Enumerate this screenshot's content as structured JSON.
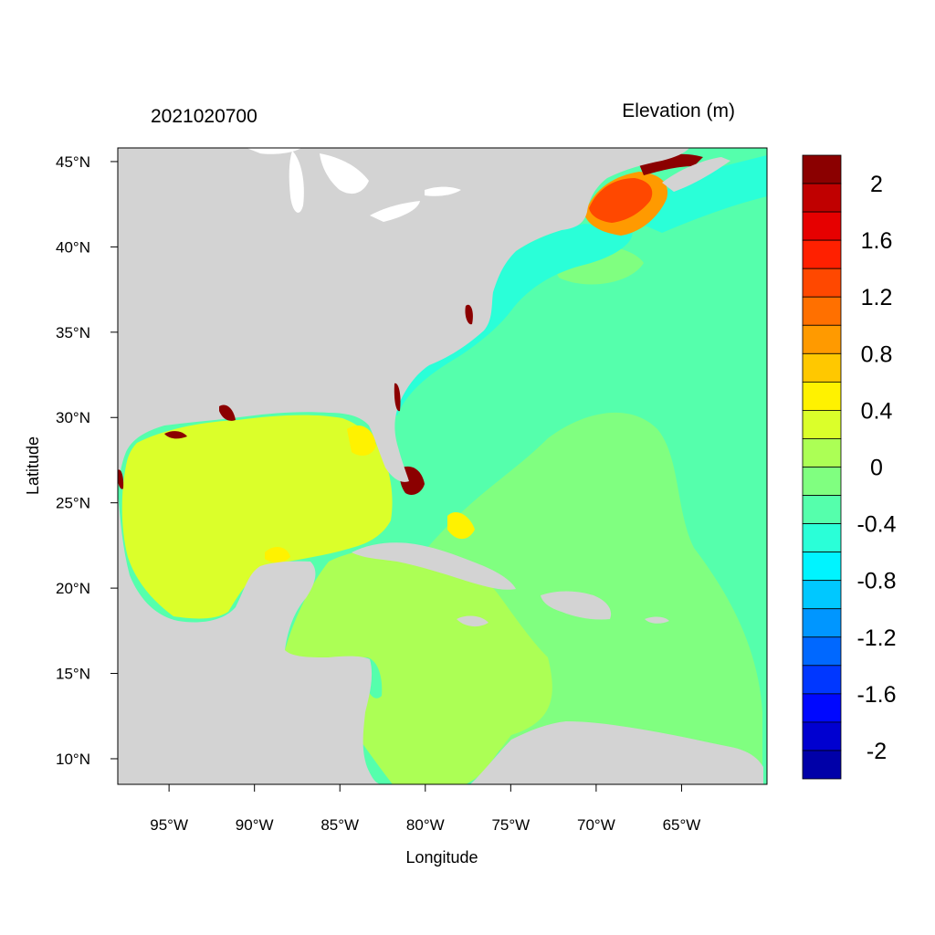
{
  "title_left": "2021020700",
  "title_right": "Elevation (m)",
  "x_axis": {
    "label": "Longitude",
    "ticks": [
      {
        "value": -95,
        "label": "95°W"
      },
      {
        "value": -90,
        "label": "90°W"
      },
      {
        "value": -85,
        "label": "85°W"
      },
      {
        "value": -80,
        "label": "80°W"
      },
      {
        "value": -75,
        "label": "75°W"
      },
      {
        "value": -70,
        "label": "70°W"
      },
      {
        "value": -65,
        "label": "65°W"
      }
    ],
    "range": [
      -98,
      -60
    ]
  },
  "y_axis": {
    "label": "Latitude",
    "ticks": [
      {
        "value": 45,
        "label": "45°N"
      },
      {
        "value": 40,
        "label": "40°N"
      },
      {
        "value": 35,
        "label": "35°N"
      },
      {
        "value": 30,
        "label": "30°N"
      },
      {
        "value": 25,
        "label": "25°N"
      },
      {
        "value": 20,
        "label": "20°N"
      },
      {
        "value": 15,
        "label": "15°N"
      },
      {
        "value": 10,
        "label": "10°N"
      }
    ],
    "range": [
      8.5,
      45.8
    ]
  },
  "colorbar": {
    "colors_top_to_bottom": [
      "#8b0000",
      "#c00000",
      "#e60000",
      "#ff2000",
      "#ff4800",
      "#ff7000",
      "#ff9a00",
      "#ffc800",
      "#fff200",
      "#dbff2a",
      "#acff55",
      "#80ff80",
      "#55ffac",
      "#2affd8",
      "#00f4ff",
      "#00c8ff",
      "#0096ff",
      "#0068ff",
      "#0037ff",
      "#0008ff",
      "#0000d0",
      "#0000a8"
    ],
    "labels": [
      {
        "label": "2",
        "value": 2
      },
      {
        "label": "1.6",
        "value": 1.6
      },
      {
        "label": "1.2",
        "value": 1.2
      },
      {
        "label": "0.8",
        "value": 0.8
      },
      {
        "label": "0.4",
        "value": 0.4
      },
      {
        "label": "0",
        "value": 0
      },
      {
        "label": "-0.4",
        "value": -0.4
      },
      {
        "label": "-0.8",
        "value": -0.8
      },
      {
        "label": "-1.2",
        "value": -1.2
      },
      {
        "label": "-1.6",
        "value": -1.6
      },
      {
        "label": "-2",
        "value": -2
      }
    ]
  },
  "colors": {
    "land": "#d3d3d3",
    "water_white": "#ffffff",
    "gulf": "#dbff2a",
    "caribbean": "#acff55",
    "atlantic_outer": "#55ffac",
    "atlantic_mid": "#80ff80",
    "coastal": "#2affd8",
    "surge_high": "#8b0000",
    "surge_gom": "#ff4800"
  }
}
